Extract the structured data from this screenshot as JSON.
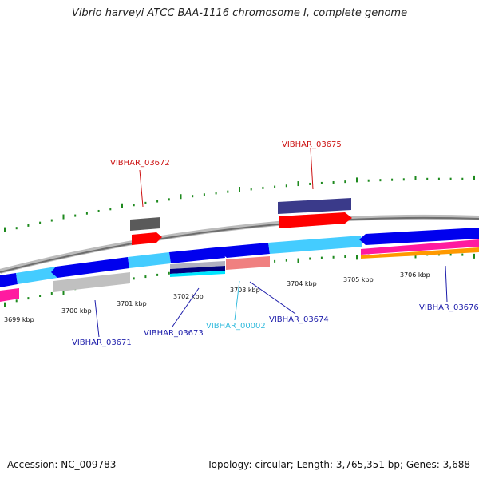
{
  "title": "Vibrio harveyi ATCC BAA-1116 chromosome I, complete genome",
  "footer": {
    "accession": "Accession: NC_009783",
    "stats": "Topology: circular; Length: 3,765,351 bp; Genes: 3,688"
  },
  "colors": {
    "backbone": "#8a8a8a",
    "forward_cds": "#0000ee",
    "forward_cds_light": "#44ccff",
    "tick": "#1e8a1e",
    "label_blue": "#1c1caa",
    "label_red": "#cc1111",
    "label_cyan": "#33bbdd"
  },
  "scale_labels": [
    "3699 kbp",
    "3700 kbp",
    "3701 kbp",
    "3702 kbp",
    "3703 kbp",
    "3704 kbp",
    "3705 kbp",
    "3706 kbp"
  ],
  "gene_labels": [
    {
      "id": "g3672",
      "text": "VIBHAR_03672",
      "color": "#cc1111"
    },
    {
      "id": "g3675",
      "text": "VIBHAR_03675",
      "color": "#cc1111"
    },
    {
      "id": "g3671",
      "text": "VIBHAR_03671",
      "color": "#1c1caa"
    },
    {
      "id": "g3673",
      "text": "VIBHAR_03673",
      "color": "#1c1caa"
    },
    {
      "id": "g0002",
      "text": "VIBHAR_00002",
      "color": "#33bbdd"
    },
    {
      "id": "g3674",
      "text": "VIBHAR_03674",
      "color": "#1c1caa"
    },
    {
      "id": "g3676",
      "text": "VIBHAR_03676",
      "color": "#1c1caa"
    }
  ]
}
